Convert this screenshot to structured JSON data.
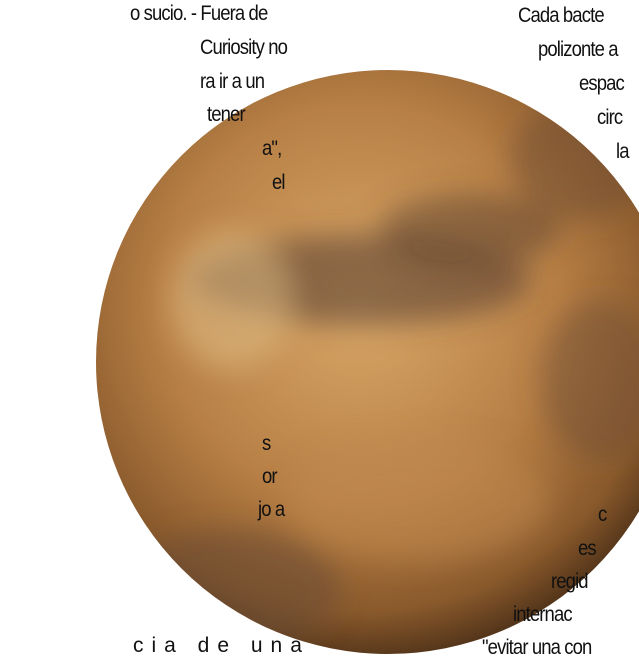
{
  "left_lines": [
    "o sucio. - Fuera de",
    "Curiosity no",
    "ra ir a un",
    "tener",
    "a\",",
    "el",
    "s",
    "or",
    "jo a",
    "cia de una"
  ],
  "right_lines": [
    "Cada bacte",
    "polizonte a",
    "espac",
    "circ",
    "la",
    "c",
    "es",
    "regid",
    "internac",
    "\"evitar una con"
  ]
}
